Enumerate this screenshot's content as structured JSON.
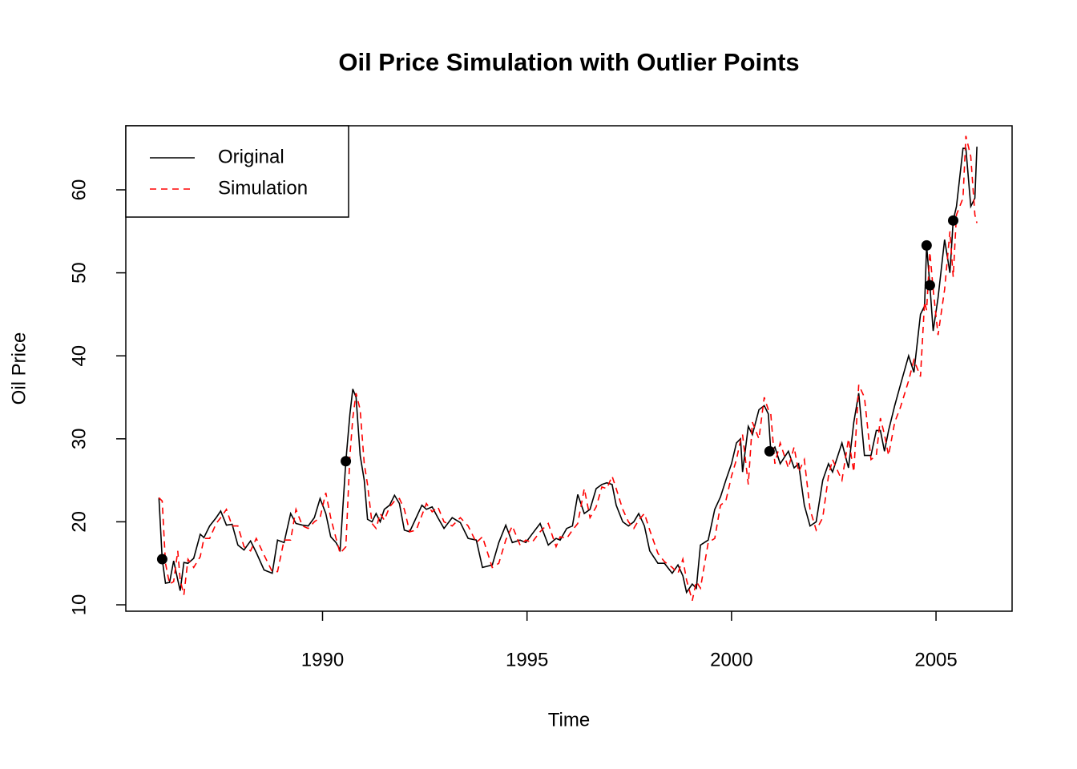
{
  "chart_data": {
    "type": "line",
    "title": "Oil Price Simulation with Outlier Points",
    "x_label": "Time",
    "y_label": "Oil Price",
    "x": [
      1986.0,
      1986.08,
      1986.16,
      1986.26,
      1986.36,
      1986.46,
      1986.52,
      1986.61,
      1986.71,
      1986.85,
      1987.01,
      1987.1,
      1987.24,
      1987.4,
      1987.51,
      1987.65,
      1987.79,
      1987.93,
      1988.08,
      1988.24,
      1988.38,
      1988.57,
      1988.77,
      1988.9,
      1989.06,
      1989.22,
      1989.35,
      1989.51,
      1989.65,
      1989.8,
      1989.94,
      1990.08,
      1990.2,
      1990.33,
      1990.43,
      1990.57,
      1990.67,
      1990.74,
      1990.82,
      1990.92,
      1991.02,
      1991.1,
      1991.21,
      1991.31,
      1991.41,
      1991.51,
      1991.64,
      1991.76,
      1991.88,
      1992.0,
      1992.13,
      1992.29,
      1992.43,
      1992.54,
      1992.68,
      1992.82,
      1992.97,
      1993.17,
      1993.37,
      1993.56,
      1993.76,
      1993.91,
      1994.15,
      1994.31,
      1994.48,
      1994.64,
      1994.83,
      1994.97,
      1995.12,
      1995.32,
      1995.52,
      1995.71,
      1995.81,
      1995.97,
      1996.11,
      1996.24,
      1996.4,
      1996.54,
      1996.69,
      1996.83,
      1996.95,
      1997.08,
      1997.18,
      1997.34,
      1997.48,
      1997.61,
      1997.73,
      1997.87,
      1998.0,
      1998.2,
      1998.36,
      1998.55,
      1998.69,
      1998.81,
      1998.9,
      1999.04,
      1999.14,
      1999.24,
      1999.43,
      1999.59,
      1999.73,
      1999.86,
      2000.0,
      2000.12,
      2000.22,
      2000.27,
      2000.41,
      2000.51,
      2000.67,
      2000.8,
      2000.9,
      2000.96,
      2001.06,
      2001.19,
      2001.39,
      2001.53,
      2001.64,
      2001.78,
      2001.92,
      2002.07,
      2002.23,
      2002.37,
      2002.47,
      2002.7,
      2002.86,
      2002.99,
      2003.11,
      2003.25,
      2003.41,
      2003.54,
      2003.64,
      2003.74,
      2003.84,
      2003.99,
      2004.13,
      2004.33,
      2004.46,
      2004.62,
      2004.72,
      2004.77,
      2004.85,
      2004.93,
      2005.05,
      2005.21,
      2005.34,
      2005.42,
      2005.5,
      2005.66,
      2005.73,
      2005.85,
      2005.95,
      2006.0
    ],
    "series": [
      {
        "name": "Original",
        "color": "#000000",
        "line_style": "solid",
        "values": [
          22.9,
          15.5,
          12.6,
          12.7,
          15.3,
          13.0,
          11.7,
          15.1,
          15.0,
          15.6,
          18.5,
          18.1,
          19.5,
          20.5,
          21.3,
          19.6,
          19.7,
          17.2,
          16.6,
          17.7,
          16.3,
          14.2,
          13.8,
          17.8,
          17.5,
          21.0,
          19.8,
          19.6,
          19.5,
          20.5,
          22.8,
          21.0,
          18.2,
          17.5,
          16.6,
          27.3,
          33.0,
          36.0,
          35.0,
          28.0,
          25.0,
          20.3,
          20.0,
          21.0,
          20.0,
          21.5,
          22.0,
          23.2,
          22.2,
          19.0,
          18.8,
          20.5,
          22.0,
          21.5,
          21.8,
          20.5,
          19.2,
          20.5,
          19.9,
          18.0,
          17.8,
          14.5,
          14.8,
          17.5,
          19.6,
          17.5,
          17.8,
          17.5,
          18.5,
          19.8,
          17.2,
          18.0,
          17.8,
          19.2,
          19.5,
          23.3,
          21.0,
          21.5,
          24.0,
          24.5,
          24.7,
          24.5,
          22.0,
          20.0,
          19.5,
          20.0,
          21.0,
          19.5,
          16.5,
          15.0,
          15.0,
          13.8,
          14.8,
          13.5,
          11.5,
          12.5,
          12.0,
          17.2,
          17.8,
          21.5,
          23.0,
          25.0,
          27.0,
          29.5,
          30.0,
          26.0,
          31.5,
          30.5,
          33.5,
          34.0,
          33.0,
          28.5,
          29.0,
          27.0,
          28.5,
          26.5,
          27.0,
          22.0,
          19.5,
          20.0,
          25.0,
          27.0,
          26.0,
          29.5,
          26.5,
          32.0,
          35.5,
          28.0,
          28.0,
          31.0,
          31.0,
          28.5,
          31.0,
          34.0,
          36.5,
          40.0,
          38.0,
          45.0,
          46.0,
          53.3,
          48.5,
          43.0,
          47.0,
          54.0,
          50.0,
          56.3,
          58.0,
          65.0,
          65.0,
          58.0,
          59.0,
          65.2
        ]
      },
      {
        "name": "Simulation",
        "color": "#ff0000",
        "line_style": "dashed",
        "values": [
          22.9,
          22.5,
          15.0,
          12.5,
          12.8,
          16.5,
          13.0,
          11.2,
          15.5,
          14.5,
          15.8,
          18.0,
          18.0,
          19.8,
          20.5,
          21.5,
          19.5,
          19.5,
          17.0,
          16.5,
          18.0,
          16.0,
          14.0,
          14.0,
          17.8,
          17.8,
          21.5,
          19.5,
          19.2,
          20.0,
          20.5,
          23.5,
          20.5,
          18.0,
          16.2,
          17.0,
          28.0,
          32.5,
          35.5,
          33.5,
          27.0,
          24.5,
          19.8,
          19.2,
          21.0,
          20.2,
          21.8,
          22.5,
          22.8,
          21.5,
          18.8,
          19.0,
          20.8,
          22.2,
          21.2,
          21.8,
          20.0,
          19.5,
          20.5,
          19.5,
          17.5,
          18.2,
          14.5,
          15.0,
          17.8,
          19.5,
          17.2,
          17.8,
          17.5,
          18.8,
          19.8,
          17.0,
          18.2,
          18.0,
          19.0,
          19.8,
          24.0,
          20.5,
          21.8,
          24.2,
          24.0,
          25.5,
          24.0,
          21.5,
          20.0,
          19.2,
          20.2,
          21.0,
          19.0,
          16.2,
          15.2,
          14.5,
          13.8,
          15.5,
          13.0,
          10.5,
          12.8,
          12.0,
          17.5,
          18.0,
          22.0,
          22.5,
          25.5,
          27.5,
          29.8,
          30.5,
          24.5,
          32.0,
          30.0,
          35.0,
          33.5,
          33.0,
          27.0,
          29.5,
          26.5,
          29.0,
          26.0,
          27.5,
          21.5,
          19.0,
          20.5,
          25.5,
          27.5,
          25.0,
          30.0,
          26.0,
          36.5,
          35.0,
          27.5,
          28.0,
          32.5,
          30.5,
          28.0,
          32.0,
          33.8,
          37.0,
          39.5,
          37.5,
          46.5,
          45.5,
          52.5,
          48.0,
          42.5,
          48.0,
          55.0,
          49.5,
          57.0,
          59.0,
          66.5,
          64.0,
          57.0,
          56.0
        ]
      }
    ],
    "outliers": {
      "color": "#000000",
      "x": [
        1986.08,
        1990.57,
        2000.93,
        2004.77,
        2004.85,
        2005.42
      ],
      "values": [
        15.5,
        27.3,
        28.5,
        53.3,
        48.5,
        56.3
      ]
    },
    "xlim": [
      1985.19,
      2006.86
    ],
    "ylim": [
      9.23,
      67.72
    ],
    "xticks": [
      1990,
      1995,
      2000,
      2005
    ],
    "yticks": [
      10,
      20,
      30,
      40,
      50,
      60
    ],
    "grid": false,
    "legend": "top-left"
  }
}
